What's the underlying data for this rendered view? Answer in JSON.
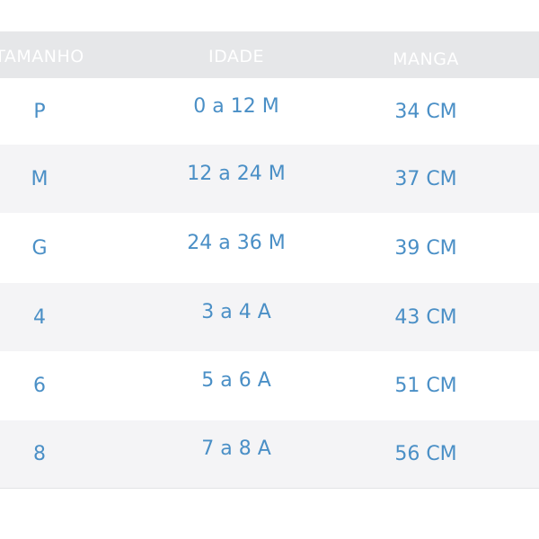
{
  "table": {
    "headers": [
      "TAMANHO",
      "IDADE",
      "MANGA"
    ],
    "rows": [
      {
        "tamanho": "P",
        "idade": "0 a 12 M",
        "manga": "34 CM"
      },
      {
        "tamanho": "M",
        "idade": "12 a 24 M",
        "manga": "37 CM"
      },
      {
        "tamanho": "G",
        "idade": "24 a 36 M",
        "manga": "39 CM"
      },
      {
        "tamanho": "4",
        "idade": "3 a 4 A",
        "manga": "43 CM"
      },
      {
        "tamanho": "6",
        "idade": "5 a 6 A",
        "manga": "51 CM"
      },
      {
        "tamanho": "8",
        "idade": "7 a 8 A",
        "manga": "56 CM"
      }
    ]
  },
  "colors": {
    "header_bg": "#e6e7e9",
    "text": "#4a8fc6",
    "alt_row": "#f4f4f6"
  }
}
